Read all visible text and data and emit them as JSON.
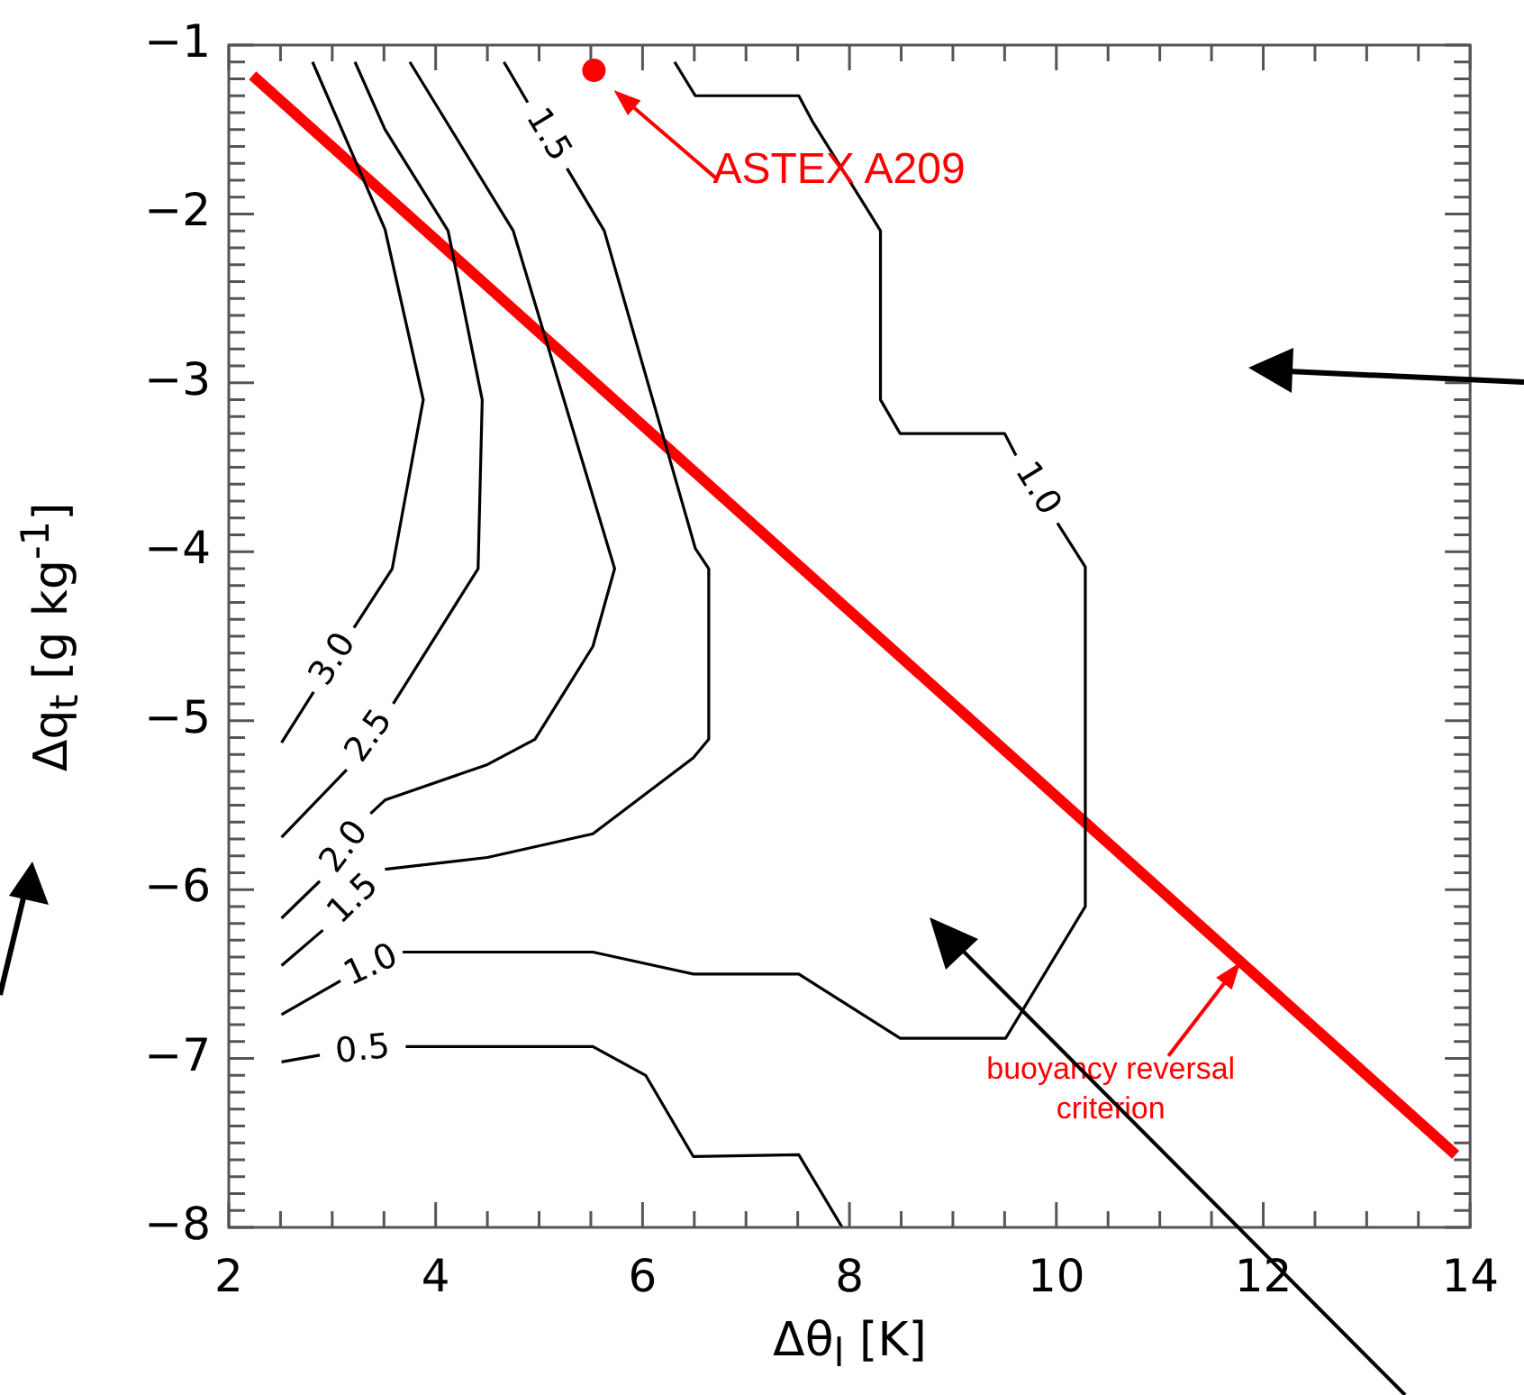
{
  "chart_data": {
    "type": "line",
    "xlabel": "Δθ$_{l}$ [K]",
    "ylabel": "Δq$_{t}$ [g kg$^{-1}$]",
    "xlim": [
      2,
      14
    ],
    "ylim": [
      -8,
      -1
    ],
    "xticks": [
      2,
      {
        "value": 2.5,
        "label": null
      },
      {
        "value": 3,
        "label": null
      },
      {
        "value": 3.5,
        "label": null
      },
      4,
      {
        "value": 4.5,
        "label": null
      },
      {
        "value": 5,
        "label": null
      },
      {
        "value": 5.5,
        "label": null
      },
      6,
      {
        "value": 6.5,
        "label": null
      },
      {
        "value": 7,
        "label": null
      },
      {
        "value": 7.5,
        "label": null
      },
      8,
      {
        "value": 8.5,
        "label": null
      },
      {
        "value": 9,
        "label": null
      },
      {
        "value": 9.5,
        "label": null
      },
      10,
      {
        "value": 10.5,
        "label": null
      },
      {
        "value": 11,
        "label": null
      },
      {
        "value": 11.5,
        "label": null
      },
      12,
      {
        "value": 12.5,
        "label": null
      },
      {
        "value": 13,
        "label": null
      },
      {
        "value": 13.5,
        "label": null
      },
      14
    ],
    "yticks": [
      -8,
      {
        "value": -7.9,
        "label": null
      },
      {
        "value": -7.8,
        "label": null
      },
      {
        "value": -7.7,
        "label": null
      },
      {
        "value": -7.6,
        "label": null
      },
      {
        "value": -7.5,
        "label": null
      },
      {
        "value": -7.4,
        "label": null
      },
      {
        "value": -7.3,
        "label": null
      },
      {
        "value": -7.2,
        "label": null
      },
      {
        "value": -7.1,
        "label": null
      },
      -7,
      {
        "value": -6.9,
        "label": null
      },
      {
        "value": -6.8,
        "label": null
      },
      {
        "value": -6.7,
        "label": null
      },
      {
        "value": -6.6,
        "label": null
      },
      {
        "value": -6.5,
        "label": null
      },
      {
        "value": -6.4,
        "label": null
      },
      {
        "value": -6.3,
        "label": null
      },
      {
        "value": -6.2,
        "label": null
      },
      {
        "value": -6.1,
        "label": null
      },
      -6,
      {
        "value": -5.9,
        "label": null
      },
      {
        "value": -5.8,
        "label": null
      },
      {
        "value": -5.7,
        "label": null
      },
      {
        "value": -5.6,
        "label": null
      },
      {
        "value": -5.5,
        "label": null
      },
      {
        "value": -5.4,
        "label": null
      },
      {
        "value": -5.3,
        "label": null
      },
      {
        "value": -5.2,
        "label": null
      },
      {
        "value": -5.1,
        "label": null
      },
      -5,
      {
        "value": -4.9,
        "label": null
      },
      {
        "value": -4.8,
        "label": null
      },
      {
        "value": -4.7,
        "label": null
      },
      {
        "value": -4.6,
        "label": null
      },
      {
        "value": -4.5,
        "label": null
      },
      {
        "value": -4.4,
        "label": null
      },
      {
        "value": -4.3,
        "label": null
      },
      {
        "value": -4.2,
        "label": null
      },
      {
        "value": -4.1,
        "label": null
      },
      -4,
      {
        "value": -3.9,
        "label": null
      },
      {
        "value": -3.8,
        "label": null
      },
      {
        "value": -3.7,
        "label": null
      },
      {
        "value": -3.6,
        "label": null
      },
      {
        "value": -3.5,
        "label": null
      },
      {
        "value": -3.4,
        "label": null
      },
      {
        "value": -3.3,
        "label": null
      },
      {
        "value": -3.2,
        "label": null
      },
      {
        "value": -3.1,
        "label": null
      },
      -3,
      {
        "value": -2.9,
        "label": null
      },
      {
        "value": -2.8,
        "label": null
      },
      {
        "value": -2.7,
        "label": null
      },
      {
        "value": -2.6,
        "label": null
      },
      {
        "value": -2.5,
        "label": null
      },
      {
        "value": -2.4,
        "label": null
      },
      {
        "value": -2.3,
        "label": null
      },
      {
        "value": -2.2,
        "label": null
      },
      {
        "value": -2.1,
        "label": null
      },
      -2,
      {
        "value": -1.9,
        "label": null
      },
      {
        "value": -1.8,
        "label": null
      },
      {
        "value": -1.7,
        "label": null
      },
      {
        "value": -1.6,
        "label": null
      },
      {
        "value": -1.5,
        "label": null
      },
      {
        "value": -1.4,
        "label": null
      },
      {
        "value": -1.3,
        "label": null
      },
      {
        "value": -1.2,
        "label": null
      },
      {
        "value": -1.1,
        "label": null
      },
      -1
    ],
    "grid": false,
    "legend": false,
    "marker": "none",
    "line_style": "solid",
    "series": [
      {
        "name": "3.0",
        "color": "#000000",
        "x": [
          2.81,
          3.51,
          3.88,
          3.58,
          3.21,
          null,
          2.82,
          2.51
        ],
        "values": [
          -1.1,
          -2.09,
          -3.1,
          -4.1,
          -4.45,
          null,
          -4.83,
          -5.13
        ]
      },
      {
        "name": "2.5",
        "color": "#000000",
        "x": [
          3.22,
          3.51,
          4.12,
          4.45,
          4.41,
          3.59,
          null,
          3.14,
          2.51
        ],
        "values": [
          -1.1,
          -1.5,
          -2.1,
          -3.1,
          -4.1,
          -4.9,
          null,
          -5.29,
          -5.69
        ]
      },
      {
        "name": "2.0",
        "color": "#000000",
        "x": [
          3.75,
          4.75,
          5.73,
          5.52,
          4.96,
          4.5,
          3.51,
          3.37,
          null,
          2.88,
          2.51
        ],
        "values": [
          -1.1,
          -2.1,
          -4.1,
          -4.56,
          -5.11,
          -5.26,
          -5.47,
          -5.55,
          null,
          -5.95,
          -6.17
        ]
      },
      {
        "name": "1.5",
        "color": "#000000",
        "x": [
          4.66,
          4.89,
          null,
          5.27,
          5.63,
          6.51,
          6.64,
          6.64,
          6.49,
          5.52,
          4.5,
          3.51,
          null,
          2.91,
          2.51
        ],
        "values": [
          -1.1,
          -1.34,
          null,
          -1.73,
          -2.1,
          -3.98,
          -4.1,
          -5.11,
          -5.22,
          -5.67,
          -5.81,
          -5.88,
          null,
          -6.24,
          -6.45
        ]
      },
      {
        "name": "1.0",
        "color": "#000000",
        "x": [
          6.31,
          6.51,
          7.51,
          7.64,
          8.19,
          8.3,
          8.3,
          8.49,
          9.5,
          9.61,
          null,
          10.01,
          10.28,
          10.28,
          9.51,
          8.49,
          7.51,
          6.49,
          5.52,
          3.68,
          null,
          3.08,
          2.51
        ],
        "values": [
          -1.1,
          -1.3,
          -1.3,
          -1.45,
          -1.99,
          -2.1,
          -3.1,
          -3.3,
          -3.3,
          -3.43,
          null,
          -3.83,
          -4.09,
          -6.1,
          -6.88,
          -6.88,
          -6.5,
          -6.5,
          -6.37,
          -6.37,
          null,
          -6.54,
          -6.74
        ]
      },
      {
        "name": "0.5",
        "color": "#000000",
        "x": [
          2.51,
          2.88,
          null,
          3.71,
          5.52,
          6.03,
          6.49,
          7.51,
          7.93
        ],
        "values": [
          -7.02,
          -6.98,
          null,
          -6.93,
          -6.93,
          -7.1,
          -7.58,
          -7.57,
          -8.0
        ]
      },
      {
        "color": "#ff0000",
        "x": [
          2.23,
          13.86
        ],
        "values": [
          -1.18,
          -7.57
        ]
      },
      {
        "type": "scatter",
        "marker": "circle",
        "color": "#ff0000",
        "x": [
          5.53
        ],
        "values": [
          -1.15
        ]
      }
    ],
    "annotations": [
      "ASTEX A209",
      {
        "text": "buoyancy reversal criterion",
        "x": 11.78,
        "y": -6.43
      }
    ]
  }
}
